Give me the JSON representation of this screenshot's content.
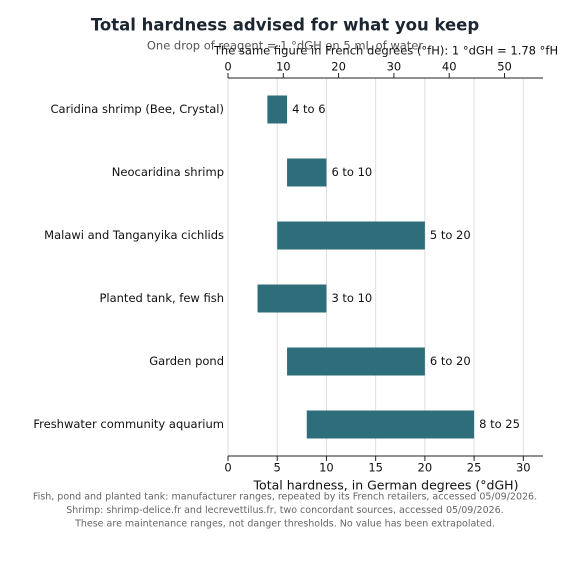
{
  "chart_data": {
    "type": "floating_bar",
    "title": "Total hardness advised for what you keep",
    "subtitle": "One drop of reagent = 1 °dGH on 5 mL of water",
    "xlabel": "Total hardness, in German degrees (°dGH)",
    "x2label": "The same figure in French degrees (°fH): 1 °dGH = 1.78 °fH",
    "categories": [
      "Caridina shrimp (Bee, Crystal)",
      "Neocaridina shrimp",
      "Malawi and Tanganyika cichlids",
      "Planted tank, few fish",
      "Garden pond",
      "Freshwater community aquarium"
    ],
    "values": [
      [
        4,
        6
      ],
      [
        6,
        10
      ],
      [
        5,
        20
      ],
      [
        3,
        10
      ],
      [
        6,
        20
      ],
      [
        8,
        25
      ]
    ],
    "value_labels": [
      "4 to 6",
      "6 to 10",
      "5 to 20",
      "3 to 10",
      "6 to 20",
      "8 to 25"
    ],
    "color": "#2e6e7a",
    "xlim": [
      0,
      32
    ],
    "xticks": [
      0,
      5,
      10,
      15,
      20,
      25,
      30
    ],
    "x2lim": [
      0,
      56.96
    ],
    "x2ticks": [
      0,
      10,
      20,
      30,
      40,
      50
    ],
    "grid": true,
    "notes": [
      "Fish, pond and planted tank: manufacturer ranges, repeated by its French retailers, accessed 05/09/2026.",
      "Shrimp: shrimp-delice.fr and lecrevettilus.fr, two concordant sources, accessed 05/09/2026.",
      "These are maintenance ranges, not danger thresholds. No value has been extrapolated."
    ]
  }
}
